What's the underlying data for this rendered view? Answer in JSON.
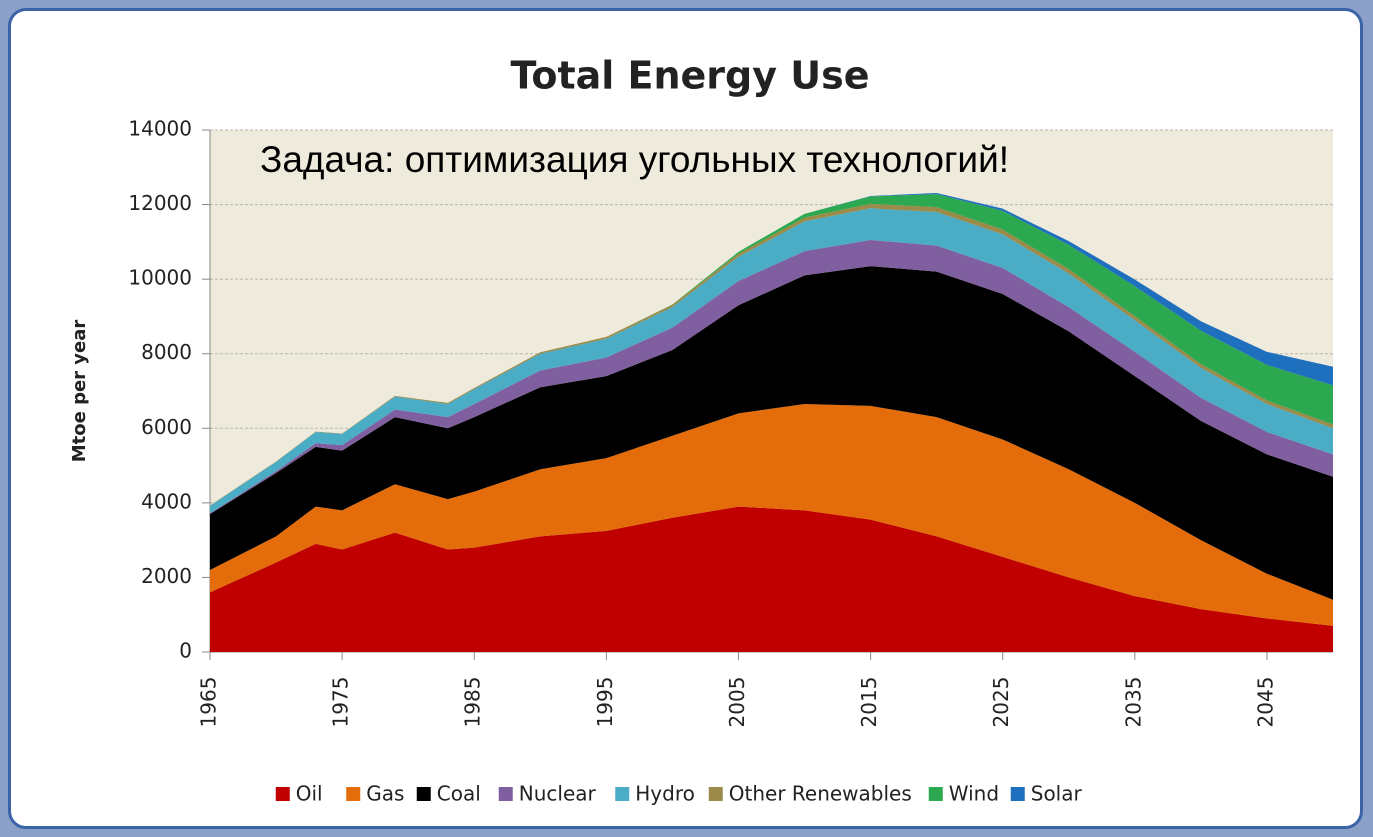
{
  "chart_data": {
    "type": "stacked_area",
    "title": "Total Energy Use",
    "annotation": "Задача: оптимизация угольных технологий!",
    "y_label": "Mtoe per year",
    "x": [
      1965,
      1970,
      1973,
      1975,
      1979,
      1983,
      1985,
      1990,
      1995,
      2000,
      2005,
      2010,
      2015,
      2020,
      2025,
      2030,
      2035,
      2040,
      2045,
      2050
    ],
    "series": [
      {
        "name": "Oil",
        "color": "#c00000",
        "values": [
          1600,
          2400,
          2900,
          2750,
          3200,
          2750,
          2800,
          3100,
          3250,
          3600,
          3900,
          3800,
          3550,
          3100,
          2550,
          2000,
          1500,
          1150,
          900,
          700
        ]
      },
      {
        "name": "Gas",
        "color": "#e46c0a",
        "values": [
          600,
          700,
          1000,
          1050,
          1300,
          1350,
          1500,
          1800,
          1950,
          2200,
          2500,
          2850,
          3050,
          3200,
          3150,
          2900,
          2500,
          1850,
          1200,
          700
        ]
      },
      {
        "name": "Coal",
        "color": "#000000",
        "values": [
          1500,
          1700,
          1600,
          1600,
          1800,
          1900,
          2000,
          2200,
          2200,
          2300,
          2900,
          3450,
          3750,
          3900,
          3900,
          3700,
          3400,
          3200,
          3200,
          3300
        ]
      },
      {
        "name": "Nuclear",
        "color": "#7f5f9f",
        "values": [
          20,
          50,
          100,
          150,
          200,
          300,
          350,
          450,
          500,
          600,
          650,
          650,
          700,
          700,
          700,
          650,
          650,
          620,
          600,
          600
        ]
      },
      {
        "name": "Hydro",
        "color": "#4bacc6",
        "values": [
          200,
          250,
          300,
          300,
          350,
          350,
          400,
          450,
          500,
          550,
          650,
          800,
          850,
          900,
          900,
          900,
          850,
          800,
          750,
          700
        ]
      },
      {
        "name": "Other Renewables",
        "color": "#9b8b4b",
        "values": [
          10,
          10,
          10,
          10,
          20,
          30,
          30,
          40,
          50,
          60,
          80,
          100,
          120,
          130,
          130,
          120,
          110,
          100,
          100,
          100
        ]
      },
      {
        "name": "Wind",
        "color": "#2ca850",
        "values": [
          0,
          0,
          0,
          0,
          0,
          0,
          0,
          0,
          0,
          10,
          50,
          100,
          200,
          350,
          500,
          650,
          800,
          900,
          950,
          1050
        ]
      },
      {
        "name": "Solar",
        "color": "#1f6fbf",
        "values": [
          0,
          0,
          0,
          0,
          0,
          0,
          0,
          0,
          0,
          0,
          0,
          0,
          10,
          30,
          60,
          100,
          180,
          250,
          350,
          500
        ]
      }
    ],
    "xlim": [
      1965,
      2050
    ],
    "xticks": [
      1965,
      1975,
      1985,
      1995,
      2005,
      2015,
      2025,
      2035,
      2045
    ],
    "ylim": [
      0,
      14000
    ],
    "yticks": [
      0,
      2000,
      4000,
      6000,
      8000,
      10000,
      12000,
      14000
    ],
    "grid": true,
    "legend": "bottom"
  }
}
